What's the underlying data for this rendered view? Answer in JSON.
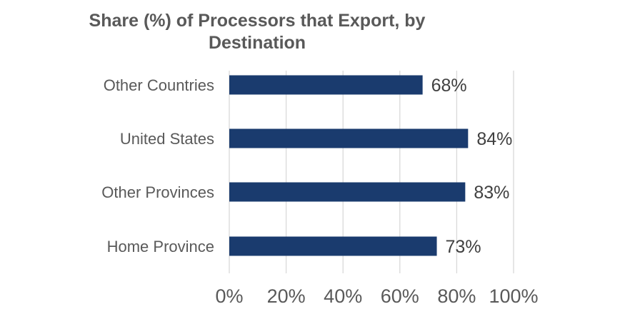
{
  "chart_data": {
    "type": "bar",
    "orientation": "horizontal",
    "title_lines": [
      "Share (%) of Processors that Export, by",
      "Destination"
    ],
    "categories": [
      "Other Countries",
      "United States",
      "Other Provinces",
      "Home Province"
    ],
    "values": [
      68,
      84,
      83,
      73
    ],
    "data_labels": [
      "68%",
      "84%",
      "83%",
      "73%"
    ],
    "xlim": [
      0,
      100
    ],
    "x_ticks": [
      0,
      20,
      40,
      60,
      80,
      100
    ],
    "x_tick_labels": [
      "0%",
      "20%",
      "40%",
      "60%",
      "80%",
      "100%"
    ],
    "xlabel": "",
    "ylabel": "",
    "grid": "vertical",
    "legend": "none",
    "bar_color": "#1a3b6e",
    "grid_color": "#d9d9d9"
  }
}
